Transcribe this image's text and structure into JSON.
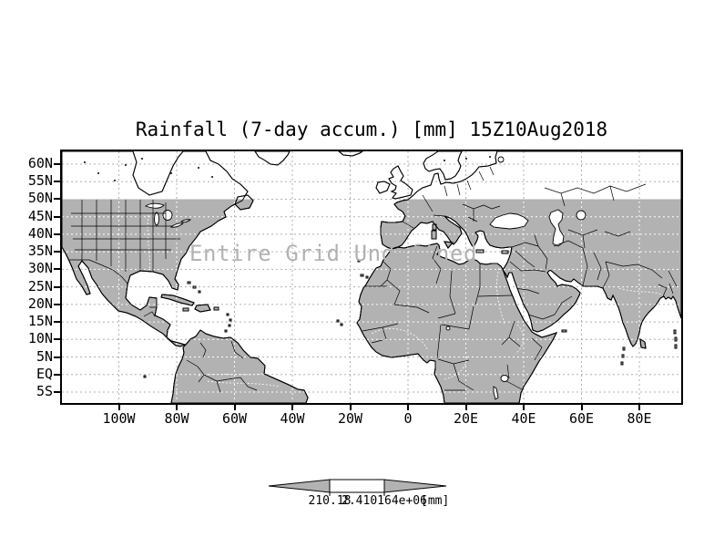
{
  "title": "Rainfall (7-day accum.) [mm] 15Z10Aug2018",
  "map": {
    "overlay_message": "Entire Grid Undefined",
    "axes": {
      "lat_labels": [
        "60N",
        "55N",
        "50N",
        "45N",
        "40N",
        "35N",
        "30N",
        "25N",
        "20N",
        "15N",
        "10N",
        "5N",
        "EQ",
        "5S"
      ],
      "lon_labels": [
        "100W",
        "80W",
        "60W",
        "40W",
        "20W",
        "0",
        "20E",
        "40E",
        "60E",
        "80E"
      ]
    },
    "colors": {
      "land": "#b2b2b2",
      "ocean": "#ffffff",
      "gridline": "#b0b0b0",
      "coastline": "#000000",
      "overlay_text": "#b2b2b2"
    }
  },
  "colorbar": {
    "left_label": "210.18",
    "right_label": "2.410164e+06",
    "units_label": "[mm]",
    "arrow_color": "#b2b2b2",
    "bar_color": "#ffffff"
  }
}
